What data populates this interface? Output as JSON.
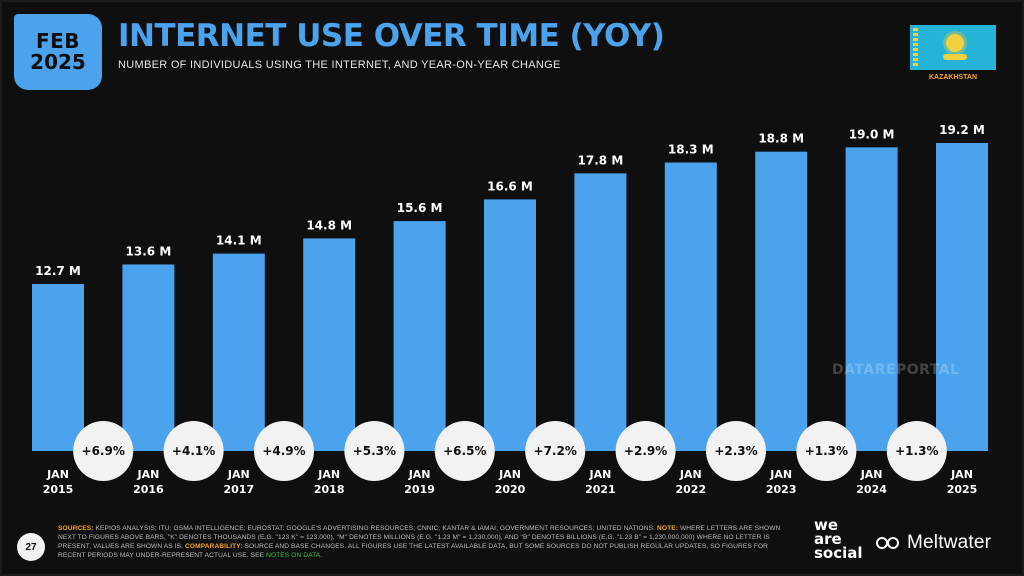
{
  "header": {
    "month": "FEB",
    "year": "2025",
    "title": "INTERNET USE OVER TIME (YOY)",
    "subtitle": "NUMBER OF INDIVIDUALS USING THE INTERNET, AND YEAR-ON-YEAR CHANGE",
    "country": "KAZAKHSTAN"
  },
  "chart_data": {
    "type": "bar",
    "categories": [
      "JAN 2015",
      "JAN 2016",
      "JAN 2017",
      "JAN 2018",
      "JAN 2019",
      "JAN 2020",
      "JAN 2021",
      "JAN 2022",
      "JAN 2023",
      "JAN 2024",
      "JAN 2025"
    ],
    "category_lines": [
      [
        "JAN",
        "2015"
      ],
      [
        "JAN",
        "2016"
      ],
      [
        "JAN",
        "2017"
      ],
      [
        "JAN",
        "2018"
      ],
      [
        "JAN",
        "2019"
      ],
      [
        "JAN",
        "2020"
      ],
      [
        "JAN",
        "2021"
      ],
      [
        "JAN",
        "2022"
      ],
      [
        "JAN",
        "2023"
      ],
      [
        "JAN",
        "2024"
      ],
      [
        "JAN",
        "2025"
      ]
    ],
    "values": [
      12.7,
      13.6,
      14.1,
      14.8,
      15.6,
      16.6,
      17.8,
      18.3,
      18.8,
      19.0,
      19.2
    ],
    "value_labels": [
      "12.7 M",
      "13.6 M",
      "14.1 M",
      "14.8 M",
      "15.6 M",
      "16.6 M",
      "17.8 M",
      "18.3 M",
      "18.8 M",
      "19.0 M",
      "19.2 M"
    ],
    "changes": [
      "+6.9%",
      "+4.1%",
      "+4.9%",
      "+5.3%",
      "+6.5%",
      "+7.2%",
      "+2.9%",
      "+2.3%",
      "+1.3%",
      "+1.3%"
    ],
    "ylim": [
      0,
      19.2
    ],
    "bar_color": "#4aa3ec",
    "grid": false
  },
  "footer": {
    "page_number": "27",
    "watermark": "DATAREPORTAL",
    "sources_label": "SOURCES:",
    "sources_text": " KEPIOS ANALYSIS; ITU; GSMA INTELLIGENCE; EUROSTAT; GOOGLE'S ADVERTISING RESOURCES; CNNIC; KANTAR & IAMAI; GOVERNMENT RESOURCES; UNITED NATIONS. ",
    "note_label": "NOTE:",
    "note_text": " WHERE LETTERS ARE SHOWN NEXT TO FIGURES ABOVE BARS, \"K\" DENOTES THOUSANDS (E.G. \"123 K\" = 123,000), \"M\" DENOTES MILLIONS (E.G. \"1.23 M\" = 1,230,000), AND \"B\" DENOTES BILLIONS (E.G. \"1.23 B\" = 1,230,000,000) WHERE NO LETTER IS PRESENT, VALUES ARE SHOWN AS IS. ",
    "comparability_label": "COMPARABILITY:",
    "comparability_text": " SOURCE AND BASE CHANGES. ALL FIGURES USE THE LATEST AVAILABLE DATA, BUT SOME SOURCES DO NOT PUBLISH REGULAR UPDATES, SO FIGURES FOR RECENT PERIODS MAY UNDER-REPRESENT ACTUAL USE. SEE ",
    "notes_link": "NOTES ON DATA",
    "notes_end": ".",
    "brand_we": "we",
    "brand_are": "are",
    "brand_social": "social",
    "brand_meltwater": "Meltwater"
  }
}
